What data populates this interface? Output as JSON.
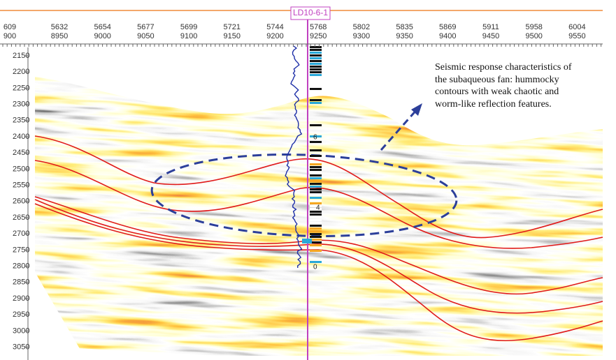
{
  "well": {
    "name": "LD10-6-1",
    "markers": [
      "6",
      "4",
      "0"
    ]
  },
  "top_axis": {
    "row1": [
      "609",
      "5632",
      "5654",
      "5677",
      "5699",
      "5721",
      "5744",
      "5768",
      "5802",
      "5835",
      "5869",
      "5911",
      "5958",
      "6004"
    ],
    "row2": [
      "900",
      "8950",
      "9000",
      "9050",
      "9100",
      "9150",
      "9200",
      "9250",
      "9300",
      "9350",
      "9400",
      "9450",
      "9500",
      "9550"
    ]
  },
  "depth_axis": {
    "labels": [
      "2150",
      "2200",
      "2250",
      "2300",
      "2350",
      "2400",
      "2450",
      "2500",
      "2550",
      "2600",
      "2650",
      "2700",
      "2750",
      "2800",
      "2850",
      "2900",
      "2950",
      "3000",
      "3050"
    ]
  },
  "annotation": "Seismic response characteristics of the subaqueous fan: hummocky contours with weak chaotic and worm-like reflection features."
}
